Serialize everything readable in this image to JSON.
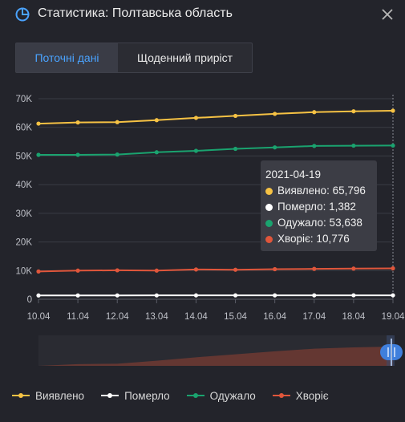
{
  "header": {
    "title": "Статистика: Полтавська область",
    "icon": "pie-chart-icon",
    "close_icon": "close-icon"
  },
  "tabs": [
    {
      "label": "Поточні дані",
      "active": true
    },
    {
      "label": "Щоденний приріст",
      "active": false
    }
  ],
  "tooltip": {
    "date": "2021-04-19",
    "rows": [
      {
        "text": "Виявлено: 65,796",
        "color": "#f6c244"
      },
      {
        "text": "Померло: 1,382",
        "color": "#ffffff"
      },
      {
        "text": "Одужало: 53,638",
        "color": "#1aa36f"
      },
      {
        "text": "Хворіє: 10,776",
        "color": "#e0563b"
      }
    ]
  },
  "legend": [
    {
      "label": "Виявлено",
      "color": "#f6c244"
    },
    {
      "label": "Померло",
      "color": "#ffffff"
    },
    {
      "label": "Одужало",
      "color": "#1aa36f"
    },
    {
      "label": "Хворіє",
      "color": "#e0563b"
    }
  ],
  "chart_data": {
    "type": "line",
    "categories": [
      "10.04",
      "11.04",
      "12.04",
      "13.04",
      "14.04",
      "15.04",
      "16.04",
      "17.04",
      "18.04",
      "19.04"
    ],
    "y_ticks": [
      "0",
      "10K",
      "20K",
      "30K",
      "40K",
      "50K",
      "60K",
      "70K"
    ],
    "ylim": [
      0,
      70000
    ],
    "grid": true,
    "series": [
      {
        "name": "Виявлено",
        "color": "#f6c244",
        "values": [
          61300,
          61700,
          61800,
          62500,
          63300,
          64000,
          64700,
          65300,
          65600,
          65796
        ]
      },
      {
        "name": "Померло",
        "color": "#ffffff",
        "values": [
          1320,
          1330,
          1340,
          1350,
          1355,
          1360,
          1365,
          1370,
          1376,
          1382
        ]
      },
      {
        "name": "Одужало",
        "color": "#1aa36f",
        "values": [
          50400,
          50400,
          50500,
          51300,
          51800,
          52500,
          53000,
          53500,
          53600,
          53638
        ]
      },
      {
        "name": "Хворіє",
        "color": "#e0563b",
        "values": [
          9700,
          10000,
          10100,
          10000,
          10400,
          10300,
          10500,
          10600,
          10700,
          10776
        ]
      }
    ],
    "highlighted_category": "19.04"
  }
}
